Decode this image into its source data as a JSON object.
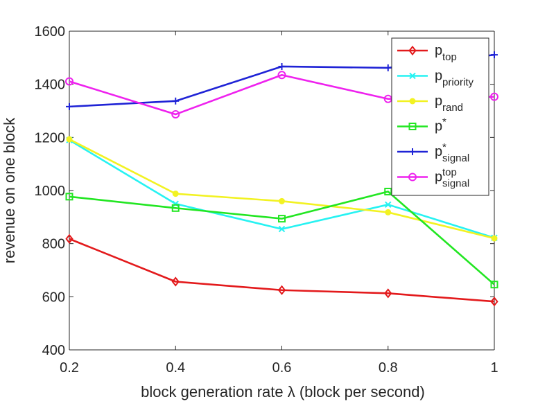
{
  "chart_data": {
    "type": "line",
    "title": "",
    "xlabel": "block generation rate λ (block per second)",
    "ylabel": "revenue on one block",
    "x": [
      0.2,
      0.4,
      0.6,
      0.8,
      1.0
    ],
    "x_tick_labels": [
      "0.2",
      "0.4",
      "0.6",
      "0.8",
      "1"
    ],
    "y_ticks": [
      400,
      600,
      800,
      1000,
      1200,
      1400,
      1600
    ],
    "xlim": [
      0.2,
      1.0
    ],
    "ylim": [
      400,
      1600
    ],
    "grid": false,
    "legend_position": "top-right",
    "series": [
      {
        "name": "p_top",
        "label_base": "p",
        "label_sup": "",
        "label_sub": "top",
        "color": "#e31a1c",
        "marker": "diamond",
        "values": [
          818,
          657,
          625,
          613,
          582
        ]
      },
      {
        "name": "p_priority",
        "label_base": "p",
        "label_sup": "",
        "label_sub": "priority",
        "color": "#27f2f2",
        "marker": "x",
        "values": [
          1190,
          950,
          855,
          947,
          822
        ]
      },
      {
        "name": "p_rand",
        "label_base": "p",
        "label_sup": "",
        "label_sub": "rand",
        "color": "#f2f222",
        "marker": "dot",
        "values": [
          1193,
          988,
          960,
          918,
          820
        ]
      },
      {
        "name": "p*",
        "label_base": "p",
        "label_sup": "*",
        "label_sub": "",
        "color": "#22e622",
        "marker": "square",
        "values": [
          977,
          934,
          894,
          996,
          646
        ]
      },
      {
        "name": "p*_signal",
        "label_base": "p",
        "label_sup": "*",
        "label_sub": "signal",
        "color": "#1f23d6",
        "marker": "plus",
        "values": [
          1316,
          1337,
          1467,
          1462,
          1511
        ]
      },
      {
        "name": "p^top_signal",
        "label_base": "p",
        "label_sup": "top",
        "label_sub": "signal",
        "color": "#ee22ee",
        "marker": "circle",
        "values": [
          1411,
          1287,
          1435,
          1345,
          1353
        ]
      }
    ]
  }
}
